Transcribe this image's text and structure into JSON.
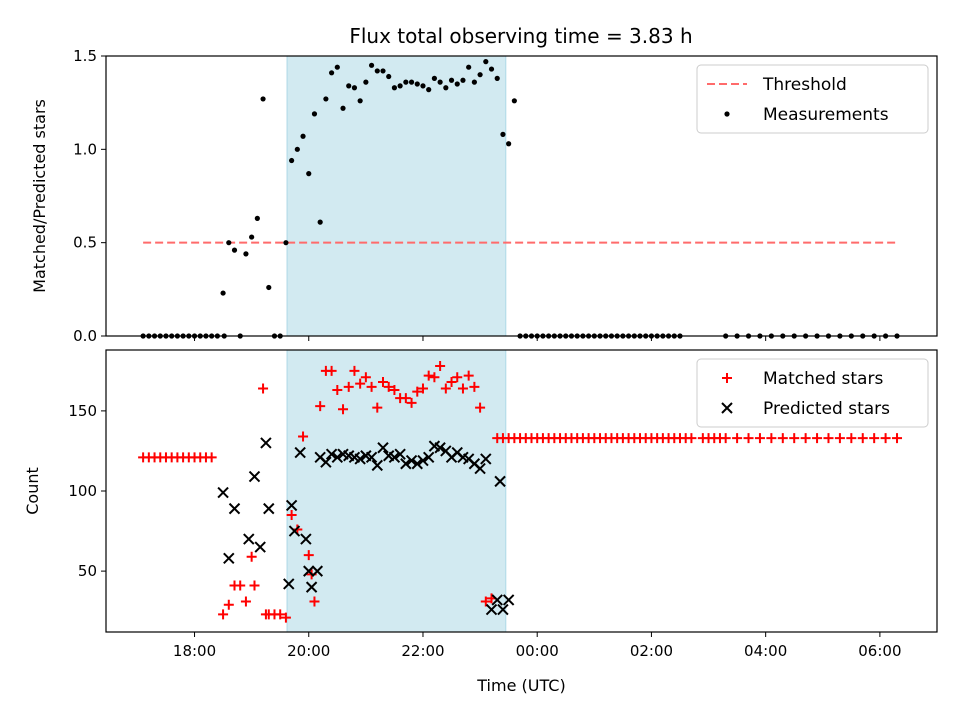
{
  "title": "Flux total observing time = 3.83 h",
  "colors": {
    "threshold": "#ff6b6b",
    "matched": "#ff0000",
    "predicted": "#000000",
    "shade": "#add8e6"
  },
  "chart_data": [
    {
      "type": "scatter",
      "ylabel": "Matched/Predicted stars",
      "xlim": [
        16.45,
        31.0
      ],
      "ylim": [
        0.0,
        1.5
      ],
      "y_ticks": [
        0.0,
        0.5,
        1.0,
        1.5
      ],
      "y_tick_labels": [
        "0.0",
        "0.5",
        "1.0",
        "1.5"
      ],
      "shaded_interval": [
        19.62,
        23.45
      ],
      "legend": {
        "position": "top-right",
        "entries": [
          "Threshold",
          "Measurements"
        ]
      },
      "threshold": {
        "name": "Threshold",
        "value": 0.5,
        "x_range": [
          17.1,
          30.3
        ]
      },
      "measurements": {
        "name": "Measurements",
        "x": [
          17.1,
          17.2,
          17.3,
          17.4,
          17.5,
          17.6,
          17.7,
          17.8,
          17.9,
          18.0,
          18.1,
          18.2,
          18.3,
          18.4,
          18.5,
          18.52,
          18.6,
          18.7,
          18.8,
          18.9,
          19.0,
          19.1,
          19.2,
          19.3,
          19.4,
          19.5,
          19.6,
          19.7,
          19.8,
          19.9,
          20.0,
          20.1,
          20.2,
          20.3,
          20.4,
          20.5,
          20.6,
          20.7,
          20.8,
          20.9,
          21.0,
          21.1,
          21.2,
          21.3,
          21.4,
          21.5,
          21.6,
          21.7,
          21.8,
          21.9,
          22.0,
          22.1,
          22.2,
          22.3,
          22.4,
          22.5,
          22.6,
          22.7,
          22.8,
          22.9,
          23.0,
          23.1,
          23.2,
          23.3,
          23.4,
          23.5,
          23.6,
          23.7,
          23.8,
          23.9,
          24.0,
          24.1,
          24.2,
          24.3,
          24.4,
          24.5,
          24.6,
          24.7,
          24.8,
          24.9,
          25.0,
          25.1,
          25.2,
          25.3,
          25.4,
          25.5,
          25.6,
          25.7,
          25.8,
          25.9,
          26.0,
          26.1,
          26.2,
          26.3,
          26.4,
          26.5,
          27.3,
          27.5,
          27.7,
          27.9,
          28.1,
          28.3,
          28.5,
          28.7,
          28.9,
          29.1,
          29.3,
          29.5,
          29.7,
          29.9,
          30.1,
          30.3
        ],
        "y": [
          0,
          0,
          0,
          0,
          0,
          0,
          0,
          0,
          0,
          0,
          0,
          0,
          0,
          0,
          0.23,
          0,
          0.5,
          0.46,
          0,
          0.44,
          0.53,
          0.63,
          1.27,
          0.26,
          0,
          0,
          0.5,
          0.94,
          1.0,
          1.07,
          0.87,
          1.19,
          0.61,
          1.27,
          1.41,
          1.44,
          1.22,
          1.34,
          1.33,
          1.26,
          1.36,
          1.45,
          1.42,
          1.42,
          1.39,
          1.33,
          1.34,
          1.36,
          1.36,
          1.35,
          1.34,
          1.32,
          1.38,
          1.36,
          1.33,
          1.37,
          1.35,
          1.37,
          1.44,
          1.36,
          1.4,
          1.47,
          1.43,
          1.38,
          1.08,
          1.03,
          1.26,
          0,
          0,
          0,
          0,
          0,
          0,
          0,
          0,
          0,
          0,
          0,
          0,
          0,
          0,
          0,
          0,
          0,
          0,
          0,
          0,
          0,
          0,
          0,
          0,
          0,
          0,
          0,
          0,
          0,
          0,
          0,
          0,
          0,
          0,
          0,
          0,
          0,
          0,
          0,
          0,
          0,
          0,
          0,
          0,
          0
        ]
      }
    },
    {
      "type": "scatter",
      "xlabel": "Time (UTC)",
      "ylabel": "Count",
      "xlim": [
        16.45,
        31.0
      ],
      "ylim": [
        12,
        188
      ],
      "y_ticks": [
        50,
        100,
        150
      ],
      "y_tick_labels": [
        "50",
        "100",
        "150"
      ],
      "x_ticks": [
        18,
        20,
        22,
        24,
        26,
        28,
        30
      ],
      "x_tick_labels": [
        "18:00",
        "20:00",
        "22:00",
        "00:00",
        "02:00",
        "04:00",
        "06:00"
      ],
      "shaded_interval": [
        19.62,
        23.45
      ],
      "legend": {
        "position": "top-right",
        "entries": [
          "Matched stars",
          "Predicted stars"
        ]
      },
      "series": [
        {
          "name": "Matched stars",
          "x": [
            17.1,
            17.2,
            17.3,
            17.4,
            17.5,
            17.6,
            17.7,
            17.8,
            17.9,
            18.0,
            18.1,
            18.2,
            18.3,
            18.5,
            18.6,
            18.7,
            18.8,
            18.9,
            19.0,
            19.05,
            19.2,
            19.25,
            19.3,
            19.4,
            19.5,
            19.6,
            19.7,
            19.8,
            19.9,
            20.0,
            20.05,
            20.1,
            20.2,
            20.3,
            20.4,
            20.5,
            20.6,
            20.7,
            20.8,
            20.9,
            21.0,
            21.1,
            21.2,
            21.3,
            21.4,
            21.5,
            21.6,
            21.7,
            21.8,
            21.9,
            22.0,
            22.1,
            22.2,
            22.3,
            22.4,
            22.5,
            22.6,
            22.7,
            22.8,
            22.9,
            23.0,
            23.1,
            23.2,
            23.3,
            23.4,
            23.5,
            23.6,
            23.7,
            23.8,
            23.9,
            24.0,
            24.1,
            24.2,
            24.3,
            24.4,
            24.5,
            24.6,
            24.7,
            24.8,
            24.9,
            25.0,
            25.1,
            25.2,
            25.3,
            25.4,
            25.5,
            25.6,
            25.7,
            25.8,
            25.9,
            26.0,
            26.1,
            26.2,
            26.3,
            26.4,
            26.5,
            26.6,
            26.7,
            26.9,
            27.0,
            27.1,
            27.2,
            27.3,
            27.5,
            27.7,
            27.9,
            28.1,
            28.3,
            28.5,
            28.7,
            28.9,
            29.1,
            29.3,
            29.5,
            29.7,
            29.9,
            30.1,
            30.3
          ],
          "y": [
            121,
            121,
            121,
            121,
            121,
            121,
            121,
            121,
            121,
            121,
            121,
            121,
            121,
            23,
            29,
            41,
            41,
            31,
            59,
            41,
            164,
            23,
            23,
            23,
            23,
            21,
            85,
            76,
            134,
            60,
            48,
            31,
            153,
            175,
            175,
            163,
            151,
            165,
            175,
            167,
            171,
            165,
            152,
            168,
            165,
            163,
            158,
            158,
            155,
            162,
            164,
            172,
            171,
            178,
            164,
            168,
            171,
            164,
            172,
            165,
            152,
            31,
            33,
            133,
            133,
            133,
            133,
            133,
            133,
            133,
            133,
            133,
            133,
            133,
            133,
            133,
            133,
            133,
            133,
            133,
            133,
            133,
            133,
            133,
            133,
            133,
            133,
            133,
            133,
            133,
            133,
            133,
            133,
            133,
            133,
            133,
            133,
            133,
            133,
            133,
            133,
            133,
            133,
            133,
            133,
            133,
            133,
            133,
            133,
            133,
            133,
            133,
            133,
            133,
            133,
            133,
            133,
            133
          ]
        },
        {
          "name": "Predicted stars",
          "x": [
            18.5,
            18.6,
            18.7,
            18.95,
            19.05,
            19.15,
            19.25,
            19.3,
            19.65,
            19.7,
            19.75,
            19.85,
            19.95,
            20.0,
            20.05,
            20.15,
            20.2,
            20.3,
            20.4,
            20.5,
            20.6,
            20.7,
            20.8,
            20.9,
            21.0,
            21.1,
            21.2,
            21.3,
            21.4,
            21.5,
            21.6,
            21.7,
            21.8,
            21.9,
            22.0,
            22.1,
            22.2,
            22.3,
            22.4,
            22.5,
            22.6,
            22.7,
            22.8,
            22.9,
            23.0,
            23.1,
            23.2,
            23.3,
            23.35,
            23.4,
            23.5
          ],
          "y": [
            99,
            58,
            89,
            70,
            109,
            65,
            130,
            89,
            42,
            91,
            75,
            124,
            70,
            50,
            40,
            50,
            121,
            118,
            123,
            121,
            123,
            122,
            121,
            120,
            122,
            121,
            116,
            127,
            122,
            121,
            123,
            117,
            119,
            117,
            119,
            121,
            128,
            127,
            125,
            121,
            124,
            121,
            120,
            117,
            114,
            120,
            26,
            32,
            106,
            26,
            32
          ]
        }
      ]
    }
  ]
}
